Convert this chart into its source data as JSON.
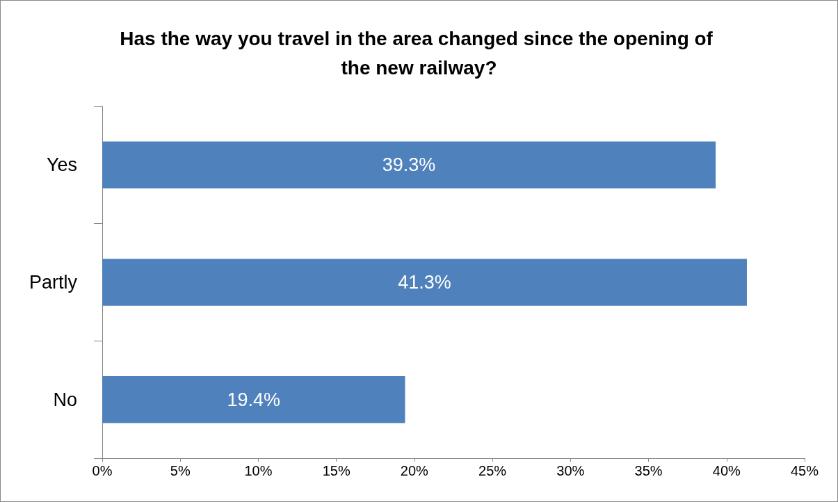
{
  "chart_data": {
    "type": "bar",
    "orientation": "horizontal",
    "title": "Has the way you travel in the area changed since the opening of the new railway?",
    "categories": [
      "Yes",
      "Partly",
      "No"
    ],
    "values": [
      39.3,
      41.3,
      19.4
    ],
    "value_labels": [
      "39.3%",
      "41.3%",
      "19.4%"
    ],
    "color": "#4f81bd",
    "xlim": [
      0,
      45
    ],
    "xticks": [
      {
        "value": 0,
        "label": "0%"
      },
      {
        "value": 5,
        "label": "5%"
      },
      {
        "value": 10,
        "label": "10%"
      },
      {
        "value": 15,
        "label": "15%"
      },
      {
        "value": 20,
        "label": "20%"
      },
      {
        "value": 25,
        "label": "25%"
      },
      {
        "value": 30,
        "label": "30%"
      },
      {
        "value": 35,
        "label": "35%"
      },
      {
        "value": 40,
        "label": "40%"
      },
      {
        "value": 45,
        "label": "45%"
      }
    ],
    "grid": false
  }
}
